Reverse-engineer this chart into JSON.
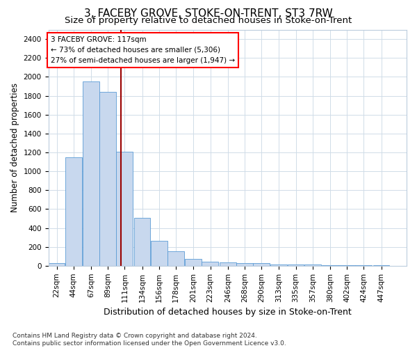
{
  "title": "3, FACEBY GROVE, STOKE-ON-TRENT, ST3 7RW",
  "subtitle": "Size of property relative to detached houses in Stoke-on-Trent",
  "xlabel": "Distribution of detached houses by size in Stoke-on-Trent",
  "ylabel": "Number of detached properties",
  "annotation_line1": "3 FACEBY GROVE: 117sqm",
  "annotation_line2": "← 73% of detached houses are smaller (5,306)",
  "annotation_line3": "27% of semi-detached houses are larger (1,947) →",
  "footer1": "Contains HM Land Registry data © Crown copyright and database right 2024.",
  "footer2": "Contains public sector information licensed under the Open Government Licence v3.0.",
  "bar_color": "#c8d8ee",
  "bar_edge_color": "#5b9bd5",
  "grid_color": "#d0dce8",
  "vline_color": "#990000",
  "vline_x": 117,
  "bin_edges": [
    22,
    44,
    67,
    89,
    111,
    134,
    156,
    178,
    201,
    223,
    246,
    268,
    290,
    313,
    335,
    357,
    380,
    402,
    424,
    447,
    469
  ],
  "bar_heights": [
    30,
    1150,
    1950,
    1840,
    1210,
    510,
    265,
    155,
    70,
    40,
    35,
    30,
    30,
    15,
    10,
    10,
    5,
    5,
    3,
    3
  ],
  "ylim": [
    0,
    2500
  ],
  "yticks": [
    0,
    200,
    400,
    600,
    800,
    1000,
    1200,
    1400,
    1600,
    1800,
    2000,
    2200,
    2400
  ],
  "title_fontsize": 11,
  "subtitle_fontsize": 9.5,
  "xlabel_fontsize": 9,
  "ylabel_fontsize": 8.5,
  "tick_fontsize": 7.5,
  "annot_fontsize": 7.5,
  "footer_fontsize": 6.5,
  "background_color": "#ffffff"
}
